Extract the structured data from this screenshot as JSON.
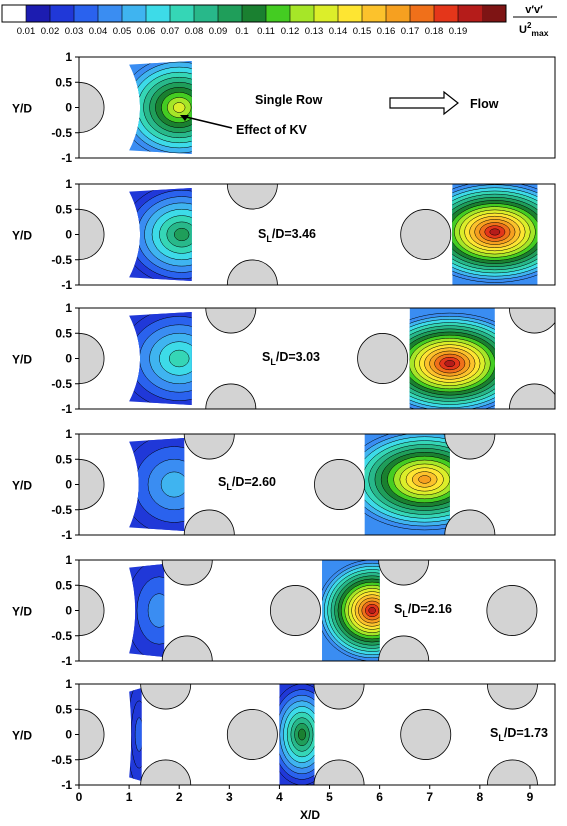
{
  "chart_data": {
    "type": "heatmap",
    "colorbar": {
      "levels": [
        "0.01",
        "0.02",
        "0.03",
        "0.04",
        "0.05",
        "0.06",
        "0.07",
        "0.08",
        "0.09",
        "0.1",
        "0.11",
        "0.12",
        "0.13",
        "0.14",
        "0.15",
        "0.16",
        "0.17",
        "0.18",
        "0.19"
      ],
      "colors": [
        "#ffffff",
        "#1c1cb0",
        "#2038d8",
        "#2a62ee",
        "#3a8df2",
        "#3fb4f0",
        "#3ddbe8",
        "#35d6b6",
        "#28b88a",
        "#1f9e5a",
        "#1a8030",
        "#44cc22",
        "#a6e628",
        "#dcee2a",
        "#fee532",
        "#fcc22c",
        "#f6a020",
        "#f0701a",
        "#e4361a",
        "#b51c1a",
        "#7e1414"
      ],
      "unit_numerator": "v′v′",
      "unit_denominator_main": "U",
      "unit_denominator_sup": "2",
      "unit_denominator_sub": "max"
    },
    "x_axis": {
      "label": "X/D",
      "range": [
        0,
        9.5
      ],
      "ticks": [
        "0",
        "1",
        "2",
        "3",
        "4",
        "5",
        "6",
        "7",
        "8",
        "9"
      ]
    },
    "y_axis": {
      "label": "Y/D",
      "range": [
        -1,
        1
      ],
      "ticks": [
        "1",
        "0.5",
        "0",
        "-0.5",
        "-1"
      ]
    },
    "panels": [
      {
        "label_main": "Single Row",
        "label_sub": "",
        "label_tail": "",
        "annotation": "Effect of KV",
        "flow_label": "Flow",
        "cylinders": [
          {
            "x": 0,
            "y": 0
          }
        ],
        "regions": [
          {
            "x0": 1.0,
            "x1": 2.25,
            "peak_x": 2.0,
            "peak_y": 0.0,
            "peak": 0.13
          }
        ]
      },
      {
        "label_main": "S",
        "label_sub": "L",
        "label_tail": "/D=3.46",
        "cylinders": [
          {
            "x": 0,
            "y": 0
          },
          {
            "x": 3.46,
            "y": 1
          },
          {
            "x": 3.46,
            "y": -1
          },
          {
            "x": 6.92,
            "y": 0
          }
        ],
        "regions": [
          {
            "x0": 1.0,
            "x1": 2.25,
            "peak_x": 2.05,
            "peak_y": 0.0,
            "peak": 0.09
          },
          {
            "x0": 7.45,
            "x1": 9.15,
            "peak_x": 8.3,
            "peak_y": 0.05,
            "peak": 0.19
          }
        ]
      },
      {
        "label_main": "S",
        "label_sub": "L",
        "label_tail": "/D=3.03",
        "cylinders": [
          {
            "x": 0,
            "y": 0
          },
          {
            "x": 3.03,
            "y": 1
          },
          {
            "x": 3.03,
            "y": -1
          },
          {
            "x": 6.06,
            "y": 0
          },
          {
            "x": 9.09,
            "y": 1
          },
          {
            "x": 9.09,
            "y": -1
          }
        ],
        "regions": [
          {
            "x0": 1.0,
            "x1": 2.25,
            "peak_x": 2.0,
            "peak_y": 0.0,
            "peak": 0.07
          },
          {
            "x0": 6.6,
            "x1": 8.3,
            "peak_x": 7.4,
            "peak_y": -0.1,
            "peak": 0.19
          }
        ]
      },
      {
        "label_main": "S",
        "label_sub": "L",
        "label_tail": "/D=2.60",
        "cylinders": [
          {
            "x": 0,
            "y": 0
          },
          {
            "x": 2.6,
            "y": 1
          },
          {
            "x": 2.6,
            "y": -1
          },
          {
            "x": 5.2,
            "y": 0
          },
          {
            "x": 7.8,
            "y": 1
          },
          {
            "x": 7.8,
            "y": -1
          }
        ],
        "regions": [
          {
            "x0": 1.0,
            "x1": 2.1,
            "peak_x": 1.9,
            "peak_y": 0.0,
            "peak": 0.05
          },
          {
            "x0": 5.7,
            "x1": 7.4,
            "peak_x": 6.9,
            "peak_y": 0.1,
            "peak": 0.16
          }
        ]
      },
      {
        "label_main": "S",
        "label_sub": "L",
        "label_tail": "/D=2.16",
        "cylinders": [
          {
            "x": 0,
            "y": 0
          },
          {
            "x": 2.16,
            "y": 1
          },
          {
            "x": 2.16,
            "y": -1
          },
          {
            "x": 4.32,
            "y": 0
          },
          {
            "x": 6.48,
            "y": 1
          },
          {
            "x": 6.48,
            "y": -1
          },
          {
            "x": 8.64,
            "y": 0
          }
        ],
        "regions": [
          {
            "x0": 1.0,
            "x1": 1.7,
            "peak_x": 1.6,
            "peak_y": 0.0,
            "peak": 0.04
          },
          {
            "x0": 4.85,
            "x1": 6.0,
            "peak_x": 5.85,
            "peak_y": 0.0,
            "peak": 0.19
          }
        ]
      },
      {
        "label_main": "S",
        "label_sub": "L",
        "label_tail": "/D=1.73",
        "cylinders": [
          {
            "x": 0,
            "y": 0
          },
          {
            "x": 1.73,
            "y": 1
          },
          {
            "x": 1.73,
            "y": -1
          },
          {
            "x": 3.46,
            "y": 0
          },
          {
            "x": 5.19,
            "y": 1
          },
          {
            "x": 5.19,
            "y": -1
          },
          {
            "x": 6.92,
            "y": 0
          },
          {
            "x": 8.65,
            "y": 1
          },
          {
            "x": 8.65,
            "y": -1
          }
        ],
        "regions": [
          {
            "x0": 1.0,
            "x1": 1.25,
            "peak_x": 1.2,
            "peak_y": 0.0,
            "peak": 0.03
          },
          {
            "x0": 4.0,
            "x1": 4.7,
            "peak_x": 4.45,
            "peak_y": 0.0,
            "peak": 0.1
          }
        ]
      }
    ]
  }
}
